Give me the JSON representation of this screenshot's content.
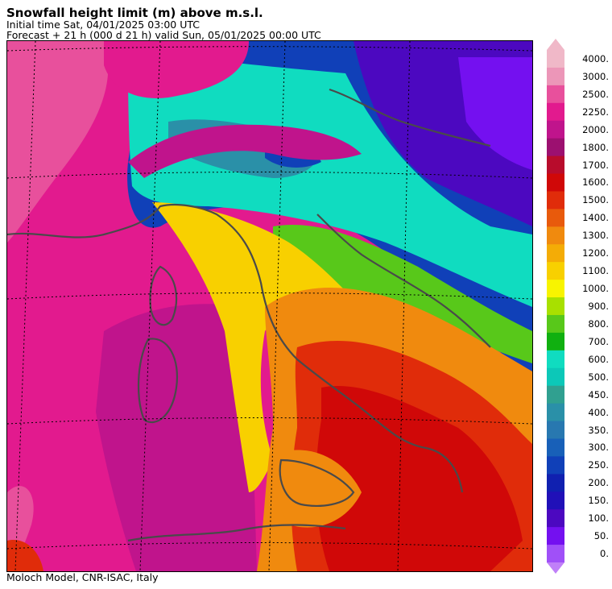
{
  "header": {
    "title": "Snowfall height limit (m) above m.s.l.",
    "initial_time": "Initial time  Sat, 04/01/2025  03:00 UTC",
    "forecast": "Forecast  +  21 h  (000 d 21 h)  valid Sun, 05/01/2025 00:00 UTC"
  },
  "footer": {
    "credit": "Moloch Model, CNR-ISAC, Italy"
  },
  "legend": {
    "unit": "m",
    "levels": [
      {
        "label": "4000.",
        "color": "#f0b8c8"
      },
      {
        "label": "3000.",
        "color": "#ec96b8"
      },
      {
        "label": "2500.",
        "color": "#e8509c"
      },
      {
        "label": "2250.",
        "color": "#e21a8e"
      },
      {
        "label": "2000.",
        "color": "#c0148c"
      },
      {
        "label": "1800.",
        "color": "#9c1070"
      },
      {
        "label": "1700.",
        "color": "#b80c2c"
      },
      {
        "label": "1600.",
        "color": "#d00808"
      },
      {
        "label": "1500.",
        "color": "#e02c0a"
      },
      {
        "label": "1400.",
        "color": "#e85a0c"
      },
      {
        "label": "1300.",
        "color": "#f08a0e"
      },
      {
        "label": "1200.",
        "color": "#f4ac06"
      },
      {
        "label": "1100.",
        "color": "#f8d000"
      },
      {
        "label": "1000.",
        "color": "#f8f400"
      },
      {
        "label": "900.",
        "color": "#a8e000"
      },
      {
        "label": "800.",
        "color": "#58c81a"
      },
      {
        "label": "700.",
        "color": "#10b010"
      },
      {
        "label": "600.",
        "color": "#10dcc0"
      },
      {
        "label": "500.",
        "color": "#0cc8b8"
      },
      {
        "label": "450.",
        "color": "#30a090"
      },
      {
        "label": "400.",
        "color": "#2a90a8"
      },
      {
        "label": "350.",
        "color": "#2878b0"
      },
      {
        "label": "300.",
        "color": "#1860b8"
      },
      {
        "label": "250.",
        "color": "#1040b8"
      },
      {
        "label": "200.",
        "color": "#1020b0"
      },
      {
        "label": "150.",
        "color": "#2010b8"
      },
      {
        "label": "100.",
        "color": "#4c08c0"
      },
      {
        "label": "50.",
        "color": "#7410f0"
      },
      {
        "label": "0.",
        "color": "#a050f8"
      }
    ],
    "low_arrow_color": "#c080f8"
  },
  "map": {
    "colors": {
      "high_magenta": "#e21a8e",
      "pink": "#e8509c",
      "deep_magenta": "#c0148c",
      "orange_red": "#e02c0a",
      "red": "#d00808",
      "orange": "#f08a0e",
      "yellow": "#f8d000",
      "green": "#58c81a",
      "cyan": "#10dcc0",
      "teal": "#2a90a8",
      "blue": "#1040b8",
      "violet": "#4c08c0",
      "purple": "#7410f0",
      "coastline": "#4a4a4a",
      "gridline": "#000000"
    }
  }
}
